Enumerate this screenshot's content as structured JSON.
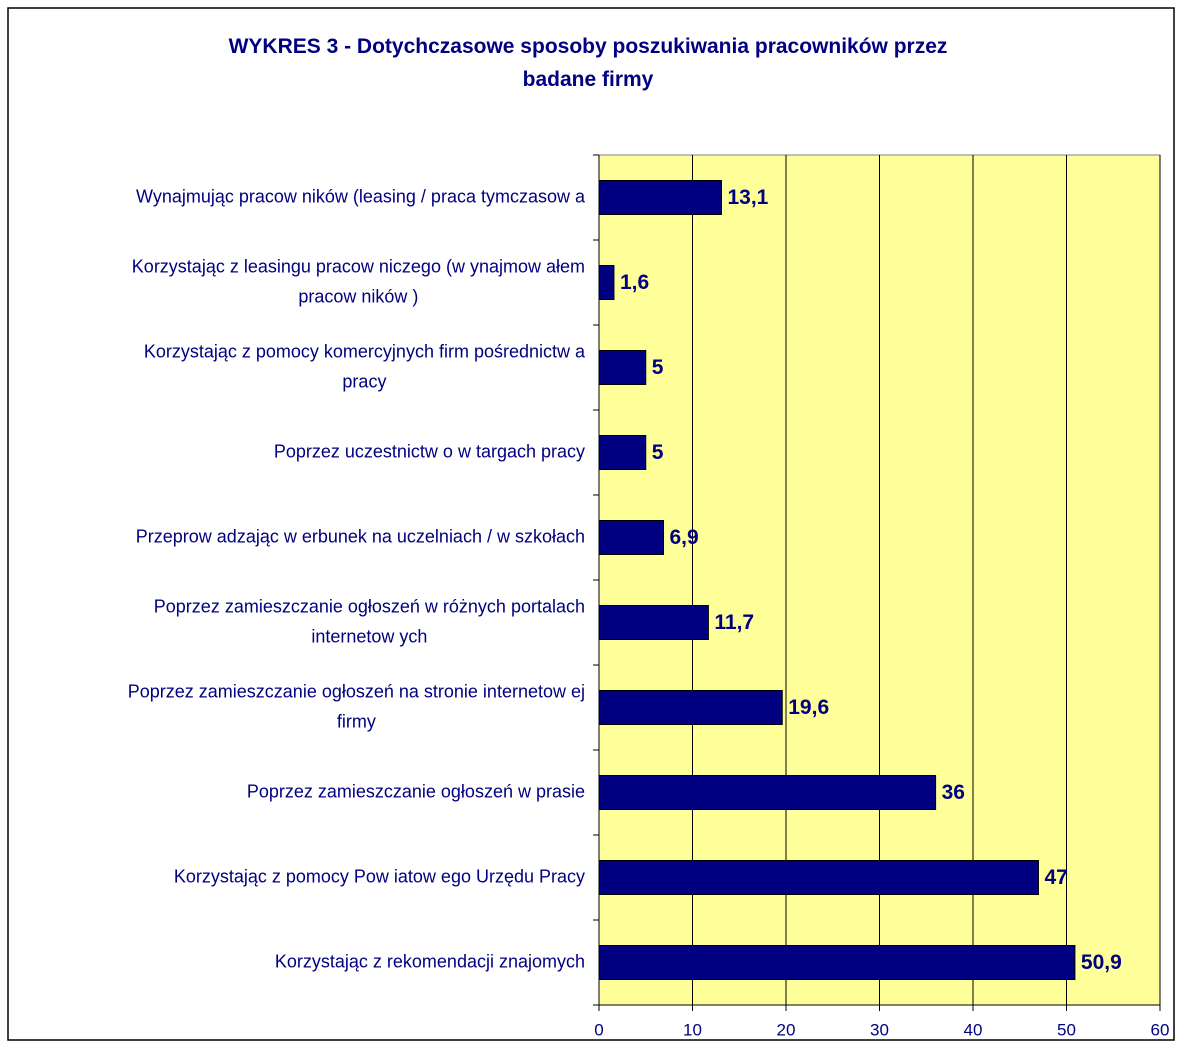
{
  "chart_data": {
    "type": "barh",
    "title": "WYKRES 3 - Dotychczasowe sposoby poszukiwania pracowników przez\nbadane firmy",
    "categories": [
      "Wynajmując pracow ników  (leasing / praca tymczasow a",
      "Korzystając z leasingu pracow niczego (w ynajmow ałem\npracow ników )",
      "Korzystając z pomocy komercyjnych firm pośrednictw a\npracy",
      "Poprzez uczestnictw o w  targach pracy",
      "Przeprow adzając w erbunek na uczelniach / w  szkołach",
      "Poprzez zamieszczanie ogłoszeń w  różnych portalach\ninternetow ych",
      "Poprzez zamieszczanie ogłoszeń na stronie internetow ej\nfirmy",
      "Poprzez zamieszczanie ogłoszeń w  prasie",
      "Korzystając z pomocy Pow iatow ego Urzędu Pracy",
      "Korzystając z rekomendacji znajomych"
    ],
    "values": [
      13.1,
      1.6,
      5,
      5,
      6.9,
      11.7,
      19.6,
      36,
      47,
      50.9
    ],
    "value_labels": [
      "13,1",
      "1,6",
      "5",
      "5",
      "6,9",
      "11,7",
      "19,6",
      "36",
      "47",
      "50,9"
    ],
    "color": "#000080",
    "background": "#ffff99",
    "xlim": [
      0,
      60
    ],
    "xticks": [
      0,
      10,
      20,
      30,
      40,
      50,
      60
    ],
    "grid": true
  }
}
